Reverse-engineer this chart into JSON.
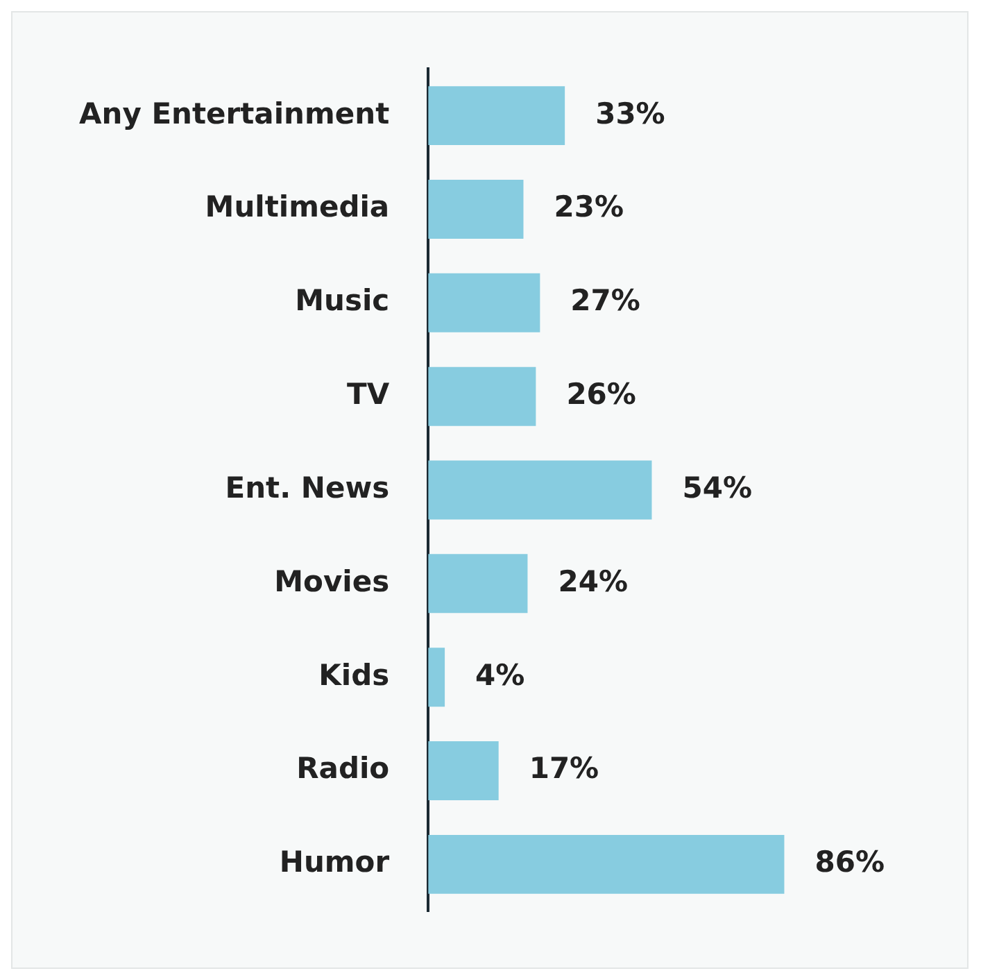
{
  "chart_data": {
    "type": "bar",
    "orientation": "horizontal",
    "categories": [
      "Any Entertainment",
      "Multimedia",
      "Music",
      "TV",
      "Ent. News",
      "Movies",
      "Kids",
      "Radio",
      "Humor"
    ],
    "values": [
      33,
      23,
      27,
      26,
      54,
      24,
      4,
      17,
      86
    ],
    "value_labels": [
      "33%",
      "23%",
      "27%",
      "26%",
      "54%",
      "24%",
      "4%",
      "17%",
      "86%"
    ],
    "color": "#87cce0"
  }
}
